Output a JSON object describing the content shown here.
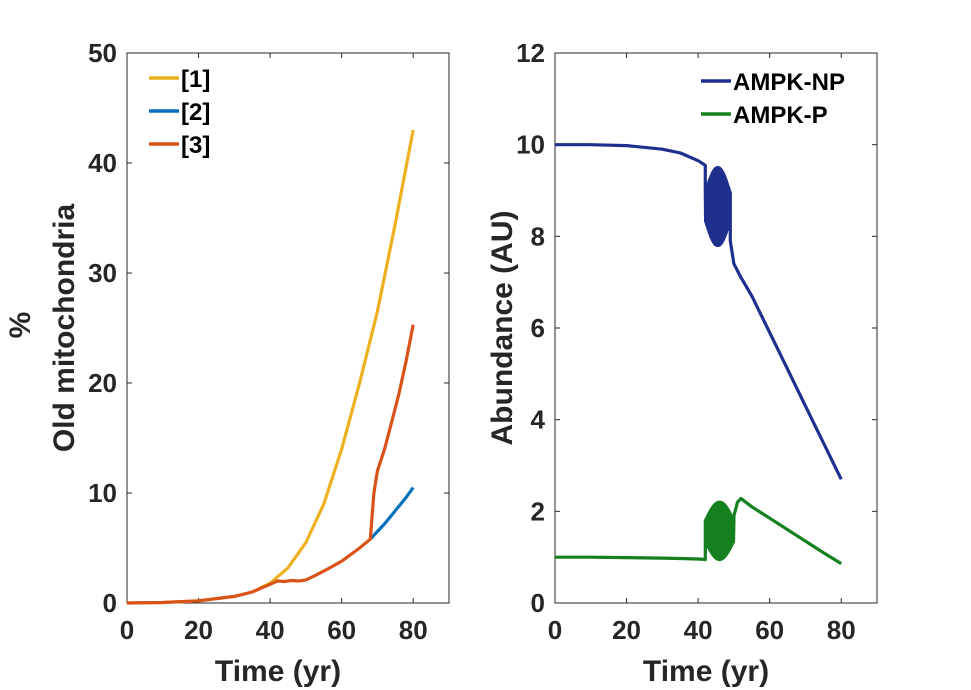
{
  "chart_data": [
    {
      "type": "line",
      "xlabel": "Time (yr)",
      "ylabel_lines": [
        "%",
        "Old mitochondria"
      ],
      "xlim": [
        0,
        90
      ],
      "ylim": [
        0,
        50
      ],
      "xticks": [
        0,
        20,
        40,
        60,
        80
      ],
      "yticks": [
        0,
        10,
        20,
        30,
        40,
        50
      ],
      "legend_position": "top-left",
      "series": [
        {
          "name": "[1]",
          "color": "#EDB120",
          "points": [
            [
              0,
              0
            ],
            [
              10,
              0.05
            ],
            [
              20,
              0.2
            ],
            [
              30,
              0.6
            ],
            [
              35,
              1.0
            ],
            [
              40,
              1.8
            ],
            [
              45,
              3.2
            ],
            [
              50,
              5.5
            ],
            [
              55,
              9
            ],
            [
              60,
              14
            ],
            [
              65,
              20
            ],
            [
              70,
              26.5
            ],
            [
              75,
              34.5
            ],
            [
              80,
              43
            ]
          ]
        },
        {
          "name": "[2]",
          "color": "#0072BD",
          "points": [
            [
              68,
              5.8
            ],
            [
              70,
              6.5
            ],
            [
              72,
              7.2
            ],
            [
              74,
              8
            ],
            [
              76,
              8.8
            ],
            [
              78,
              9.6
            ],
            [
              80,
              10.5
            ]
          ]
        },
        {
          "name": "[3]",
          "color": "#D95319",
          "points": [
            [
              0,
              0
            ],
            [
              10,
              0.05
            ],
            [
              20,
              0.2
            ],
            [
              30,
              0.6
            ],
            [
              35,
              1.0
            ],
            [
              40,
              1.7
            ],
            [
              42,
              2.0
            ],
            [
              44,
              1.95
            ],
            [
              46,
              2.05
            ],
            [
              48,
              2.0
            ],
            [
              50,
              2.1
            ],
            [
              52,
              2.4
            ],
            [
              55,
              2.9
            ],
            [
              60,
              3.8
            ],
            [
              65,
              5.0
            ],
            [
              68,
              5.8
            ],
            [
              69,
              10
            ],
            [
              70,
              12
            ],
            [
              72,
              14
            ],
            [
              74,
              16.5
            ],
            [
              76,
              19
            ],
            [
              78,
              22
            ],
            [
              80,
              25.3
            ]
          ]
        }
      ]
    },
    {
      "type": "line",
      "xlabel": "Time (yr)",
      "ylabel": "Abundance (AU)",
      "xlim": [
        0,
        90
      ],
      "ylim": [
        0,
        12
      ],
      "xticks": [
        0,
        20,
        40,
        60,
        80
      ],
      "yticks": [
        0,
        2,
        4,
        6,
        8,
        10,
        12
      ],
      "legend_position": "top-right",
      "series": [
        {
          "name": "AMPK-NP",
          "color": "#1F2F8E",
          "points": [
            [
              0,
              10
            ],
            [
              10,
              10
            ],
            [
              20,
              9.98
            ],
            [
              30,
              9.9
            ],
            [
              35,
              9.82
            ],
            [
              40,
              9.65
            ],
            [
              42,
              9.55
            ]
          ],
          "oscillation": {
            "x_start": 42,
            "x_end": 49,
            "low": 7.8,
            "high": 9.5
          },
          "points_after": [
            [
              49,
              7.9
            ],
            [
              50,
              7.4
            ],
            [
              52,
              7.1
            ],
            [
              55,
              6.7
            ],
            [
              60,
              5.9
            ],
            [
              65,
              5.1
            ],
            [
              70,
              4.3
            ],
            [
              75,
              3.5
            ],
            [
              80,
              2.7
            ]
          ]
        },
        {
          "name": "AMPK-P",
          "color": "#15801E",
          "points": [
            [
              0,
              1
            ],
            [
              10,
              1
            ],
            [
              20,
              0.99
            ],
            [
              30,
              0.98
            ],
            [
              35,
              0.97
            ],
            [
              40,
              0.96
            ],
            [
              42,
              0.95
            ]
          ],
          "oscillation": {
            "x_start": 42,
            "x_end": 50,
            "low": 0.95,
            "high": 2.2
          },
          "points_after": [
            [
              50,
              1.9
            ],
            [
              51,
              2.2
            ],
            [
              52,
              2.28
            ],
            [
              55,
              2.1
            ],
            [
              60,
              1.85
            ],
            [
              65,
              1.6
            ],
            [
              70,
              1.35
            ],
            [
              75,
              1.1
            ],
            [
              80,
              0.86
            ]
          ]
        }
      ]
    }
  ]
}
